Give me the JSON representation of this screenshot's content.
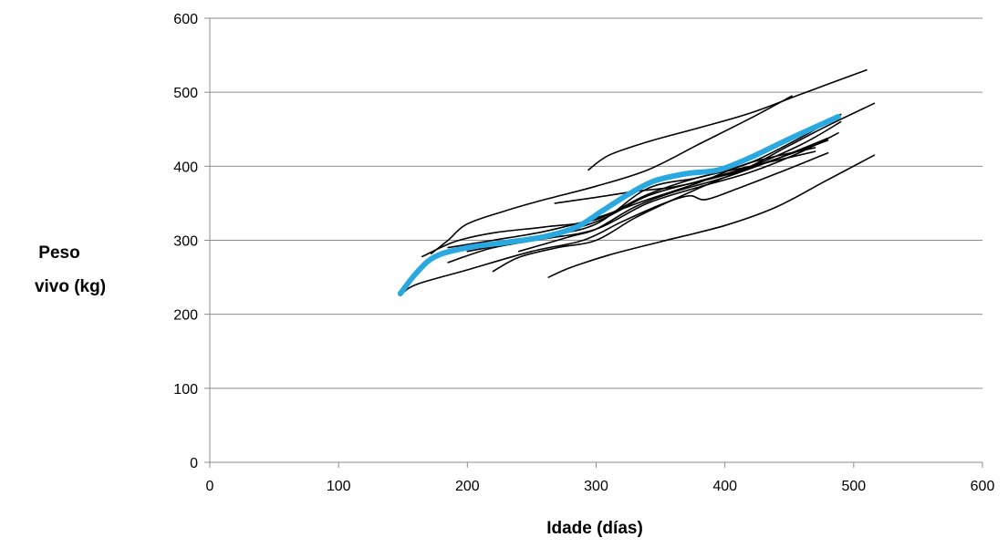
{
  "chart_data": {
    "type": "line",
    "title": "",
    "xlabel": "Idade (días)",
    "ylabel_lines": [
      "Peso",
      "vivo (kg)"
    ],
    "xlim": [
      0,
      600
    ],
    "ylim": [
      0,
      600
    ],
    "xticks": [
      0,
      100,
      200,
      300,
      400,
      500,
      600
    ],
    "yticks": [
      0,
      100,
      200,
      300,
      400,
      500,
      600
    ],
    "grid": "horizontal",
    "legend": "none",
    "individual_color": "#000000",
    "mean_color": "#29a9e0",
    "series": [
      {
        "x": [
          172,
          185,
          200,
          230,
          260,
          300,
          340,
          380,
          420,
          452
        ],
        "y": [
          282,
          300,
          322,
          340,
          355,
          373,
          395,
          430,
          465,
          495
        ]
      },
      {
        "x": [
          294,
          310,
          340,
          380,
          420,
          460,
          510
        ],
        "y": [
          395,
          415,
          433,
          452,
          472,
          498,
          530
        ]
      },
      {
        "x": [
          263,
          280,
          310,
          350,
          400,
          440,
          478,
          516
        ],
        "y": [
          250,
          263,
          280,
          298,
          320,
          345,
          380,
          415
        ]
      },
      {
        "x": [
          220,
          240,
          270,
          300,
          330,
          360,
          390,
          420,
          450,
          480,
          516
        ],
        "y": [
          258,
          277,
          290,
          300,
          330,
          355,
          378,
          400,
          428,
          455,
          485
        ]
      },
      {
        "x": [
          148,
          160,
          200,
          250,
          290,
          320,
          350,
          372,
          385,
          410,
          440,
          480
        ],
        "y": [
          225,
          240,
          260,
          285,
          300,
          325,
          348,
          360,
          355,
          370,
          390,
          418
        ]
      },
      {
        "x": [
          268,
          300,
          330,
          360,
          400,
          440,
          480
        ],
        "y": [
          350,
          358,
          366,
          372,
          388,
          410,
          435
        ]
      },
      {
        "x": [
          185,
          220,
          260,
          300,
          340,
          380,
          420,
          470
        ],
        "y": [
          290,
          300,
          312,
          330,
          355,
          378,
          405,
          425
        ]
      },
      {
        "x": [
          165,
          190,
          220,
          260,
          300,
          340,
          380,
          420,
          470
        ],
        "y": [
          278,
          298,
          310,
          318,
          328,
          362,
          385,
          400,
          420
        ]
      },
      {
        "x": [
          185,
          220,
          260,
          300,
          340,
          380,
          420,
          460,
          488
        ],
        "y": [
          270,
          290,
          302,
          315,
          350,
          372,
          392,
          420,
          445
        ]
      },
      {
        "x": [
          200,
          250,
          300,
          340,
          380,
          420,
          460,
          490
        ],
        "y": [
          285,
          302,
          325,
          360,
          380,
          400,
          430,
          460
        ]
      },
      {
        "x": [
          220,
          260,
          300,
          340,
          380,
          420,
          460,
          490
        ],
        "y": [
          290,
          305,
          322,
          370,
          385,
          405,
          440,
          470
        ]
      },
      {
        "x": [
          240,
          280,
          300,
          330,
          360,
          400,
          440,
          480
        ],
        "y": [
          285,
          305,
          315,
          345,
          365,
          385,
          410,
          438
        ]
      }
    ],
    "mean": {
      "x": [
        148,
        160,
        175,
        200,
        230,
        260,
        285,
        305,
        325,
        345,
        370,
        395,
        420,
        450,
        488
      ],
      "y": [
        228,
        255,
        278,
        290,
        297,
        305,
        318,
        340,
        362,
        380,
        390,
        395,
        412,
        437,
        467
      ]
    }
  }
}
